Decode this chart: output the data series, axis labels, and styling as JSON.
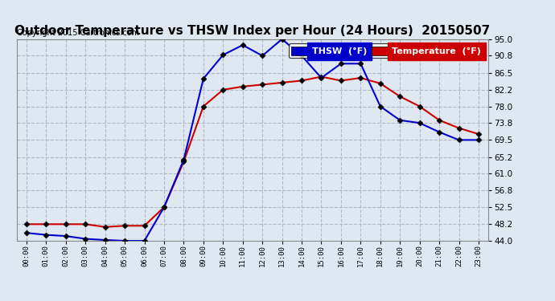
{
  "title": "Outdoor Temperature vs THSW Index per Hour (24 Hours)  20150507",
  "copyright": "Copyright 2015 Cartronics.com",
  "hours": [
    "00:00",
    "01:00",
    "02:00",
    "03:00",
    "04:00",
    "05:00",
    "06:00",
    "07:00",
    "08:00",
    "09:00",
    "10:00",
    "11:00",
    "12:00",
    "13:00",
    "14:00",
    "15:00",
    "16:00",
    "17:00",
    "18:00",
    "19:00",
    "20:00",
    "21:00",
    "22:00",
    "23:00"
  ],
  "thsw": [
    46.0,
    45.5,
    45.2,
    44.5,
    44.2,
    44.0,
    44.0,
    52.5,
    64.5,
    85.0,
    91.0,
    93.5,
    90.8,
    95.0,
    90.8,
    85.2,
    88.8,
    88.8,
    78.0,
    74.5,
    73.8,
    71.5,
    69.5,
    69.5
  ],
  "temperature": [
    48.2,
    48.2,
    48.2,
    48.2,
    47.5,
    47.8,
    47.8,
    52.5,
    64.0,
    78.0,
    82.2,
    83.0,
    83.5,
    84.0,
    84.5,
    85.5,
    84.5,
    85.2,
    83.8,
    80.5,
    78.0,
    74.5,
    72.5,
    71.0
  ],
  "ylim": [
    44.0,
    95.0
  ],
  "yticks": [
    44.0,
    48.2,
    52.5,
    56.8,
    61.0,
    65.2,
    69.5,
    73.8,
    78.0,
    82.2,
    86.5,
    90.8,
    95.0
  ],
  "thsw_color": "#0000cc",
  "temp_color": "#cc0000",
  "bg_color": "#dfe8f0",
  "plot_bg_color": "#dfe8f0",
  "grid_color": "#b0b8c8",
  "title_fontsize": 11,
  "copyright_fontsize": 7,
  "legend_thsw_label": "THSW  (°F)",
  "legend_temp_label": "Temperature  (°F)"
}
